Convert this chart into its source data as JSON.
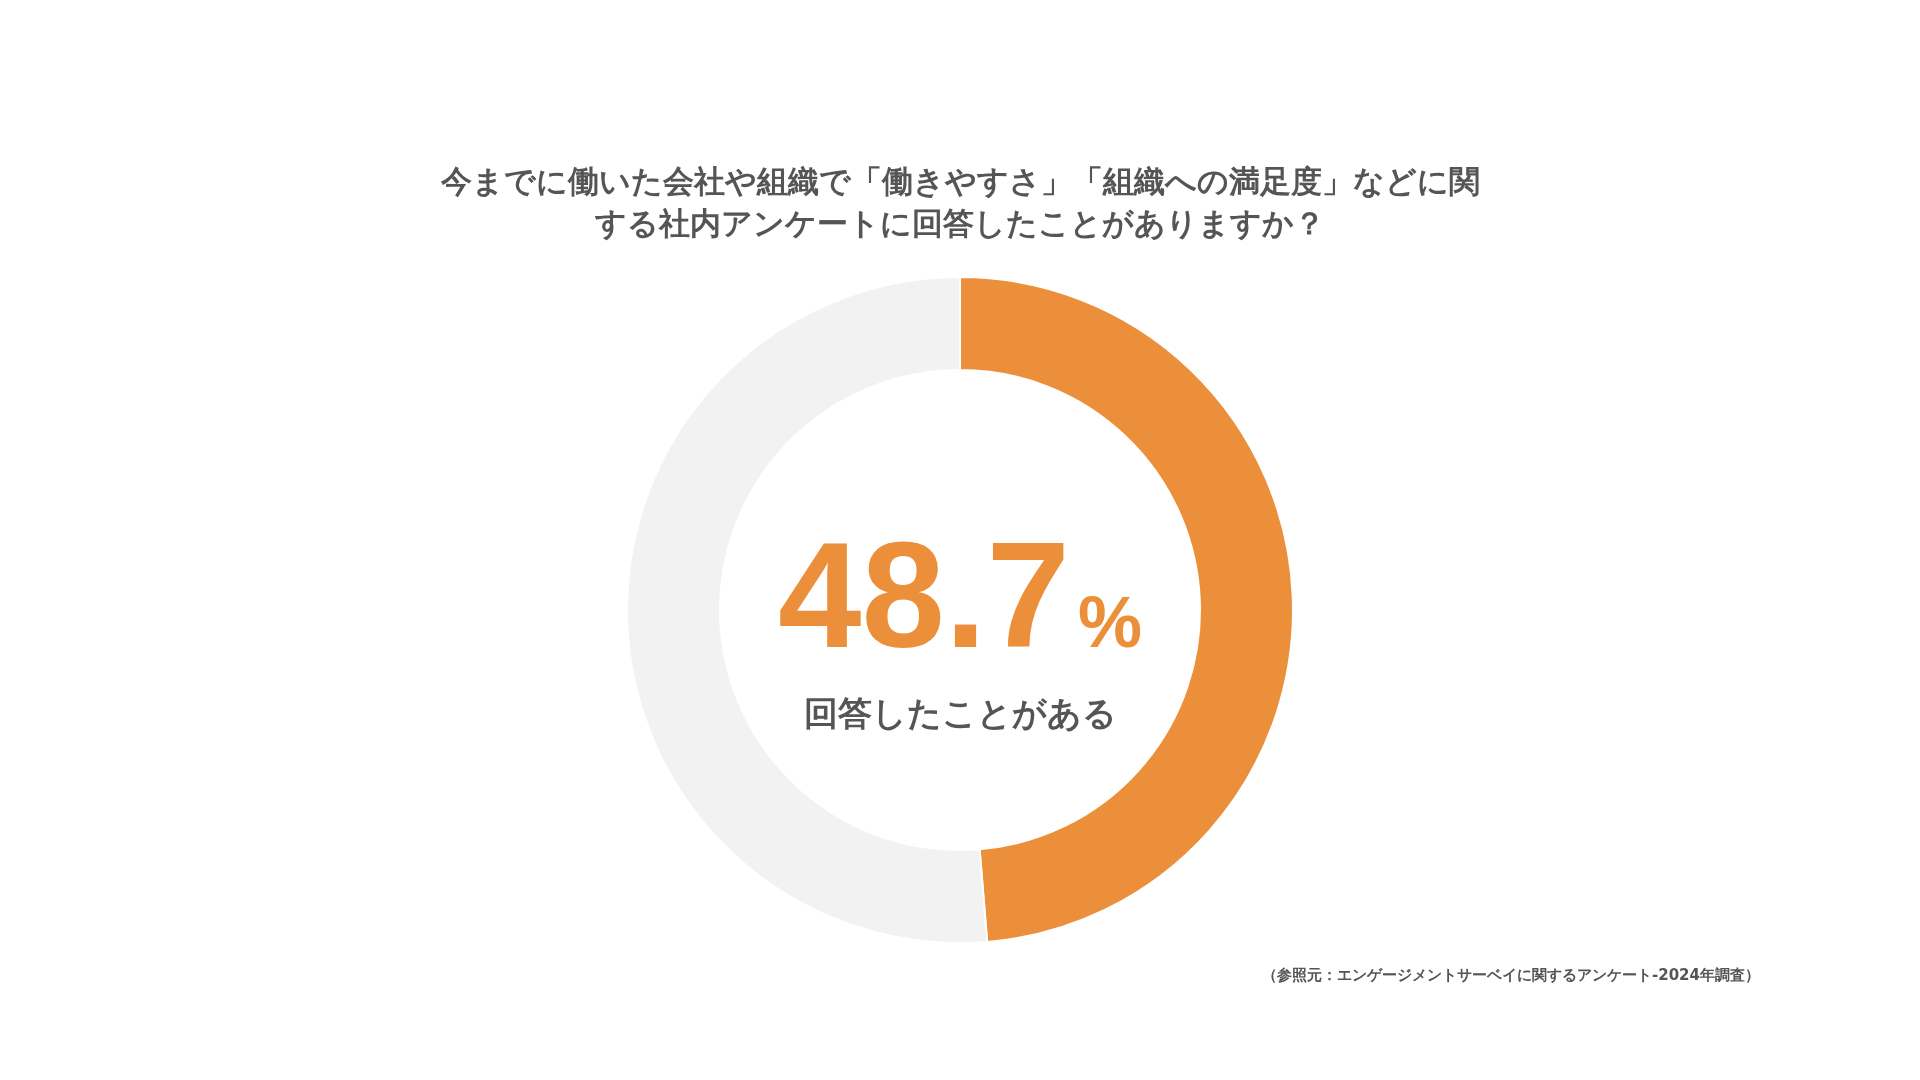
{
  "chart_data": {
    "type": "donut",
    "title": "今までに働いた会社や組織で「働きやすさ」「組織への満足度」などに関する社内アンケートに回答したことがありますか？",
    "categories": [
      "回答したことがある",
      null
    ],
    "values": [
      48.7,
      51.3
    ],
    "colors": [
      "#eb8f3a",
      "#f2f2f2"
    ],
    "value_labels": [
      "48.7%",
      null
    ],
    "annotations": [
      "（参照元：エンゲージメントサーベイに関するアンケート-2024年調査）"
    ]
  }
}
